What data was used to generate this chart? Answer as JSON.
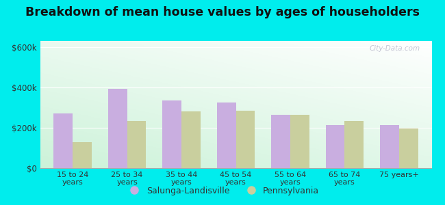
{
  "categories": [
    "15 to 24\nyears",
    "25 to 34\nyears",
    "35 to 44\nyears",
    "45 to 54\nyears",
    "55 to 64\nyears",
    "65 to 74\nyears",
    "75 years+"
  ],
  "salunga": [
    270000,
    392000,
    335000,
    325000,
    265000,
    215000,
    215000
  ],
  "pennsylvania": [
    130000,
    235000,
    280000,
    285000,
    265000,
    235000,
    195000
  ],
  "salunga_color": "#c9aee0",
  "pennsylvania_color": "#c9cf9e",
  "title": "Breakdown of mean house values by ages of householders",
  "title_fontsize": 12.5,
  "yticks": [
    0,
    200000,
    400000,
    600000
  ],
  "ytick_labels": [
    "$0",
    "$200k",
    "$400k",
    "$600k"
  ],
  "ylim": [
    0,
    630000
  ],
  "outer_background": "#00eded",
  "legend_salunga": "Salunga-Landisville",
  "legend_pennsylvania": "Pennsylvania",
  "bar_width": 0.35,
  "watermark": "City-Data.com"
}
